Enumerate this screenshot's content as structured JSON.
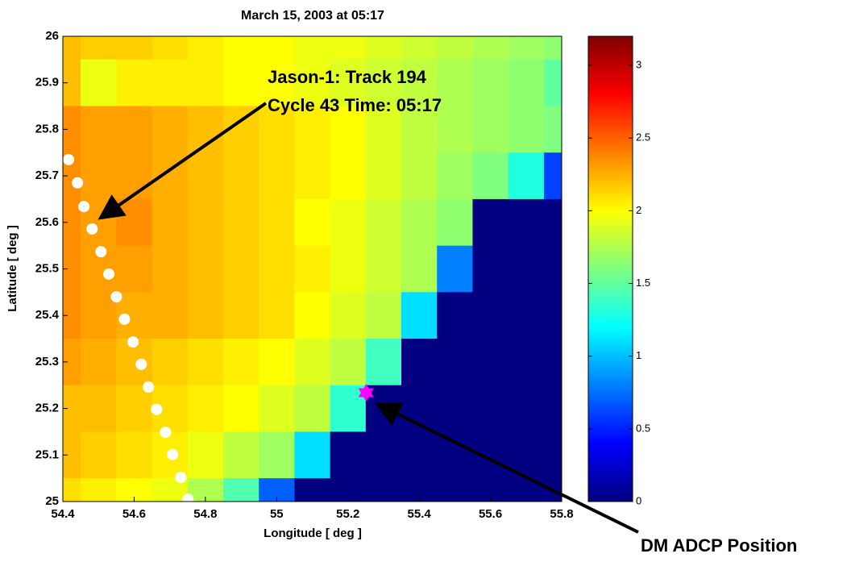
{
  "chart_data": {
    "type": "heatmap",
    "title": "March 15, 2003 at 05:17",
    "xlabel": "Longitude [ deg ]",
    "ylabel": "Latitude [ deg ]",
    "colormap": "jet",
    "x": [
      54.4,
      54.5,
      54.6,
      54.7,
      54.8,
      54.9,
      55.0,
      55.1,
      55.2,
      55.3,
      55.4,
      55.5,
      55.6,
      55.7,
      55.8
    ],
    "y": [
      26.0,
      25.9,
      25.8,
      25.7,
      25.6,
      25.5,
      25.4,
      25.3,
      25.2,
      25.1,
      25.0
    ],
    "values": [
      [
        2.2,
        2.15,
        2.15,
        2.1,
        2.05,
        2.0,
        2.0,
        1.95,
        1.95,
        1.9,
        1.85,
        1.8,
        1.75,
        1.7,
        1.65
      ],
      [
        2.2,
        1.95,
        2.05,
        2.05,
        2.05,
        2.0,
        2.0,
        1.95,
        1.9,
        1.85,
        1.8,
        1.75,
        1.7,
        1.65,
        1.5
      ],
      [
        2.35,
        2.3,
        2.3,
        2.25,
        2.2,
        2.15,
        2.1,
        2.05,
        2.0,
        1.9,
        1.8,
        1.75,
        1.7,
        1.65,
        1.6
      ],
      [
        2.35,
        2.3,
        2.3,
        2.25,
        2.2,
        2.15,
        2.1,
        2.05,
        2.0,
        1.9,
        1.8,
        1.7,
        1.6,
        1.3,
        0.6
      ],
      [
        2.35,
        2.3,
        2.35,
        2.25,
        2.2,
        2.15,
        2.1,
        2.0,
        1.95,
        1.85,
        1.75,
        1.65,
        0,
        0,
        0
      ],
      [
        2.35,
        2.3,
        2.3,
        2.25,
        2.2,
        2.15,
        2.1,
        2.05,
        1.95,
        1.85,
        1.75,
        0.8,
        0,
        0,
        0
      ],
      [
        2.35,
        2.3,
        2.25,
        2.25,
        2.2,
        2.15,
        2.1,
        2.0,
        1.9,
        1.8,
        1.1,
        0,
        0,
        0,
        0
      ],
      [
        2.3,
        2.25,
        2.2,
        2.15,
        2.1,
        2.05,
        2.0,
        1.9,
        1.8,
        1.4,
        0,
        0,
        0,
        0,
        0
      ],
      [
        2.2,
        2.2,
        2.15,
        2.1,
        2.05,
        2.0,
        1.9,
        1.8,
        1.35,
        0,
        0,
        0,
        0,
        0,
        0
      ],
      [
        2.2,
        2.15,
        2.1,
        2.05,
        1.95,
        1.8,
        1.7,
        1.1,
        0,
        0,
        0,
        0,
        0,
        0,
        0
      ],
      [
        2.1,
        2.05,
        2.0,
        1.95,
        1.75,
        1.45,
        0.7,
        0,
        0,
        0,
        0,
        0,
        0,
        0,
        0
      ]
    ],
    "cell": 0.1,
    "xlim": [
      54.4,
      55.8
    ],
    "ylim": [
      25,
      26
    ],
    "xticks": [
      54.4,
      54.6,
      54.8,
      55,
      55.2,
      55.4,
      55.6,
      55.8
    ],
    "yticks": [
      25,
      25.1,
      25.2,
      25.3,
      25.4,
      25.5,
      25.6,
      25.7,
      25.8,
      25.9,
      26
    ],
    "clim": [
      0,
      3.2
    ],
    "cticks": [
      0,
      0.5,
      1,
      1.5,
      2,
      2.5,
      3
    ],
    "track": {
      "color": "#ffffff",
      "x": [
        54.416,
        54.441,
        54.459,
        54.482,
        54.507,
        54.529,
        54.55,
        54.573,
        54.597,
        54.62,
        54.64,
        54.663,
        54.688,
        54.708,
        54.731,
        54.751
      ],
      "y": [
        25.735,
        25.685,
        25.634,
        25.586,
        25.537,
        25.489,
        25.44,
        25.392,
        25.343,
        25.295,
        25.246,
        25.198,
        25.149,
        25.101,
        25.052,
        25.005
      ]
    },
    "station": {
      "color": "#ff00ff",
      "x": 55.251,
      "y": 25.234
    },
    "annotations": [
      "Jason-1: Track 194",
      "Cycle 43 Time: 05:17",
      "DM ADCP Position"
    ]
  }
}
